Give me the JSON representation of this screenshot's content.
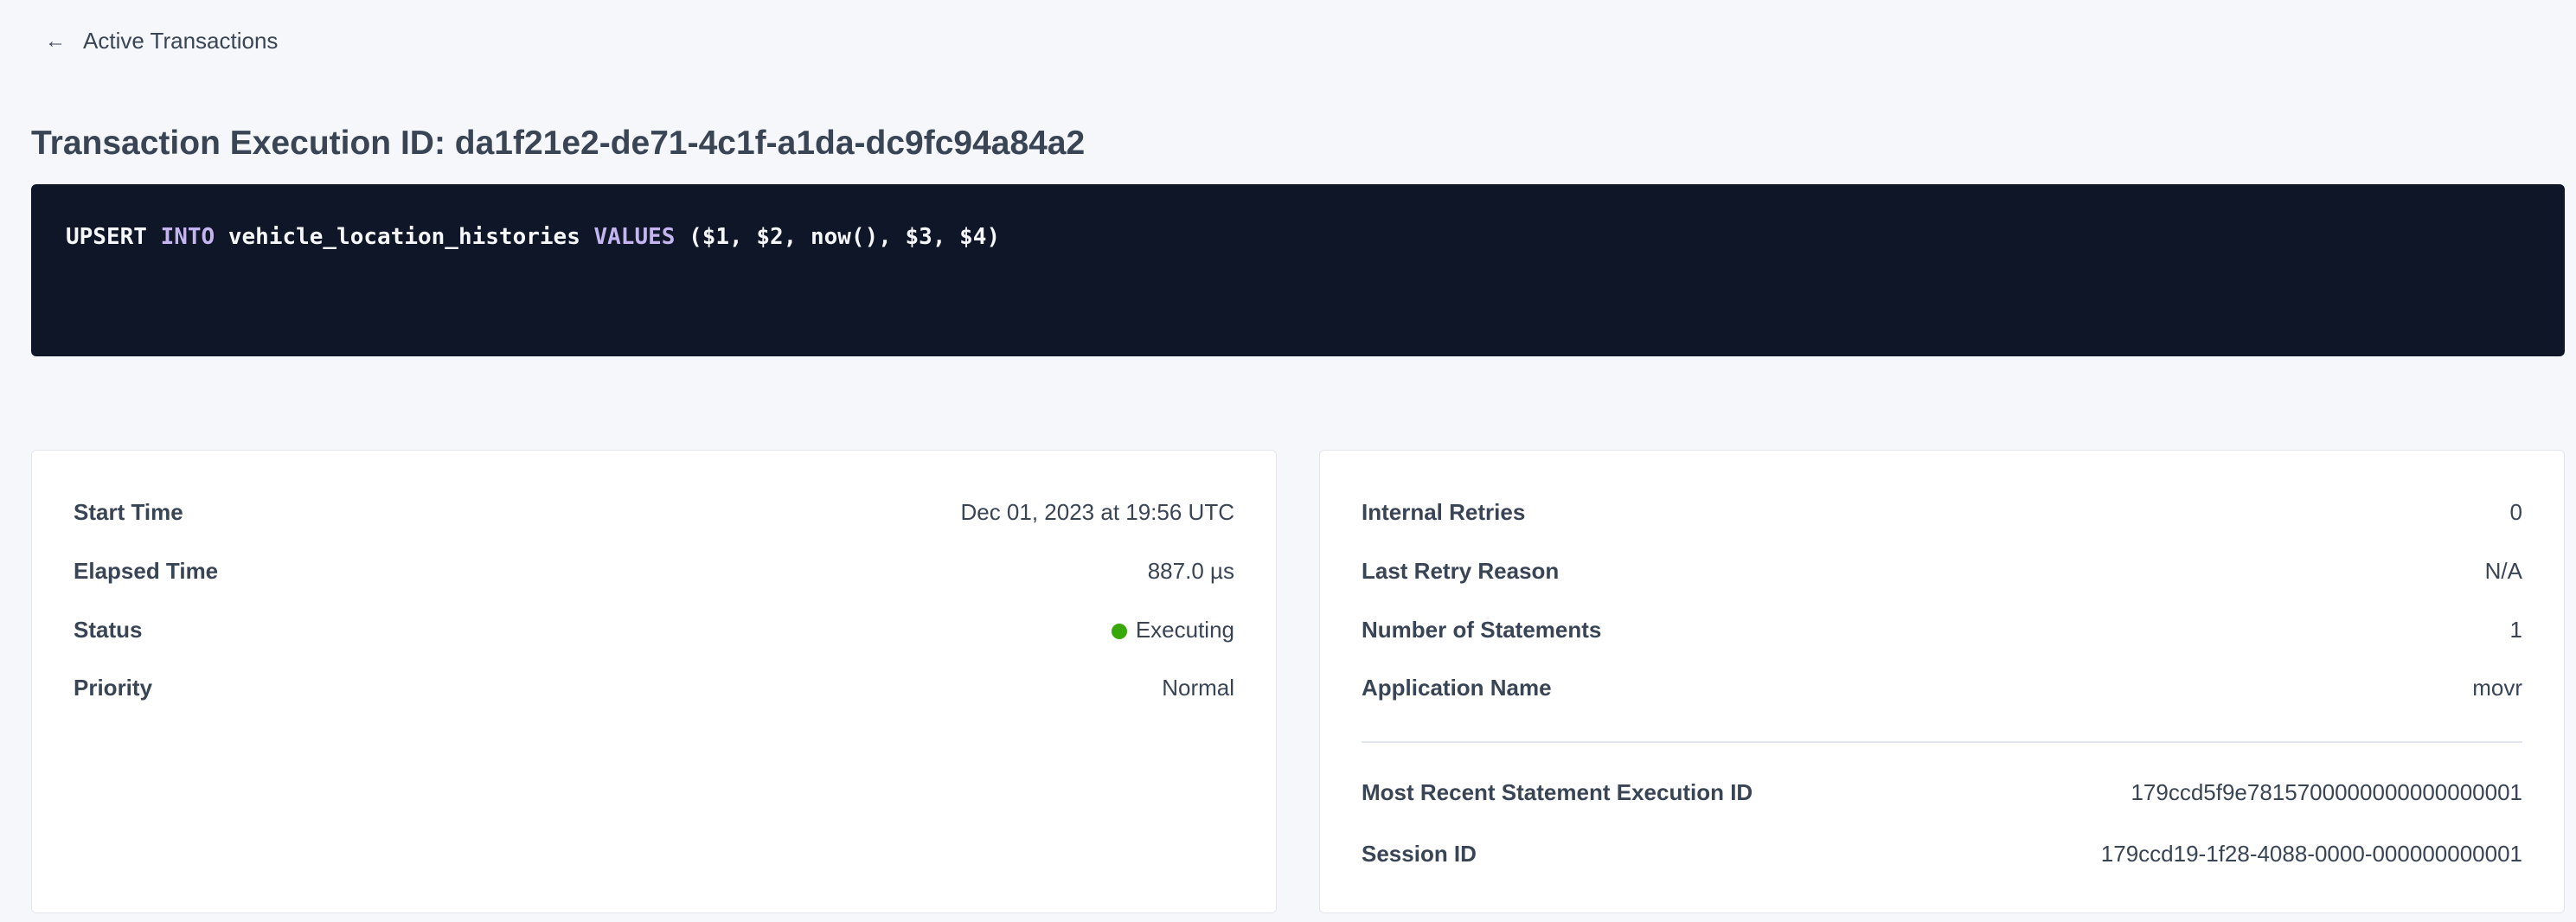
{
  "back_link": {
    "label": "Active Transactions",
    "icon": "arrow-left-icon"
  },
  "title": "Transaction Execution ID: da1f21e2-de71-4c1f-a1da-dc9fc94a84a2",
  "sql": {
    "t1": "UPSERT ",
    "k1": "INTO",
    "t2": " vehicle_location_histories ",
    "k2": "VALUES",
    "t3": " ($1, $2, now(), $3, $4)"
  },
  "left": [
    {
      "label": "Start Time",
      "value": "Dec 01, 2023 at 19:56 UTC"
    },
    {
      "label": "Elapsed Time",
      "value": "887.0 µs"
    },
    {
      "label": "Status",
      "value": "Executing",
      "status_color": "#37a806"
    },
    {
      "label": "Priority",
      "value": "Normal"
    }
  ],
  "right": [
    {
      "label": "Internal Retries",
      "value": "0"
    },
    {
      "label": "Last Retry Reason",
      "value": "N/A"
    },
    {
      "label": "Number of Statements",
      "value": "1"
    },
    {
      "label": "Application Name",
      "value": "movr"
    }
  ],
  "right_links": [
    {
      "label": "Most Recent Statement Execution ID",
      "value": "179ccd5f9e7815700000000000000001"
    },
    {
      "label": "Session ID",
      "value": "179ccd19-1f28-4088-0000-000000000001"
    }
  ],
  "colors": {
    "link": "#0055ff",
    "code_bg": "#0f1627",
    "keyword": "#c4b5f0"
  }
}
